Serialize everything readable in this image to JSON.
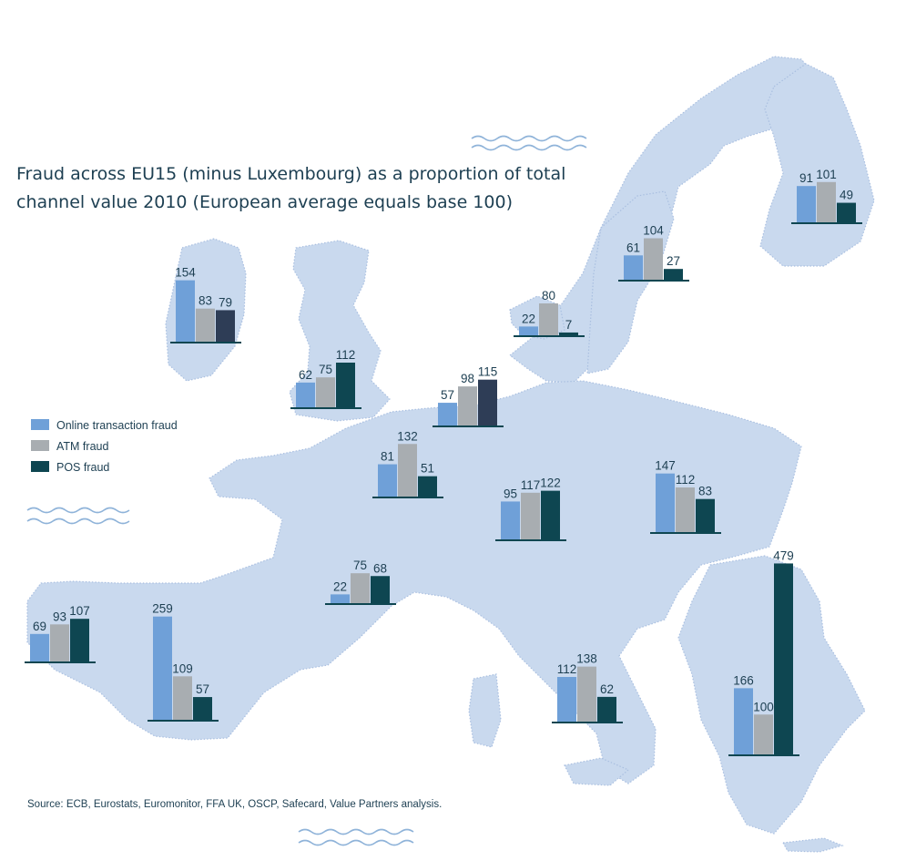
{
  "title": {
    "line1": "Fraud across EU15 (minus Luxembourg) as a proportion of total",
    "line2": "channel value 2010 (European average equals base 100)"
  },
  "legend": [
    {
      "label": "Online transaction fraud",
      "color": "#6fa0d8"
    },
    {
      "label": "ATM fraud",
      "color": "#a8adb1"
    },
    {
      "label": "POS fraud",
      "color": "#0e4651"
    }
  ],
  "source": "Source: ECB, Eurostats, Euromonitor, FFA UK, OSCP, Safecard, Value Partners analysis.",
  "chart_data": {
    "type": "bar",
    "title": "Fraud across EU15 (minus Luxembourg) as a proportion of total channel value 2010 (European average equals base 100)",
    "series_names": [
      "Online transaction fraud",
      "ATM fraud",
      "POS fraud"
    ],
    "groups": [
      {
        "id": "ireland",
        "values": [
          154,
          83,
          79
        ],
        "labels": [
          "154",
          "83",
          "79"
        ],
        "pos_color": "#2e3d56"
      },
      {
        "id": "uk",
        "values": [
          62,
          75,
          112
        ],
        "labels": [
          "62",
          "75",
          "112"
        ],
        "pos_color": "#0e4651"
      },
      {
        "id": "netherlands",
        "values": [
          57,
          98,
          115
        ],
        "labels": [
          "57",
          "98",
          "115"
        ],
        "pos_color": "#2e3d56"
      },
      {
        "id": "belgium",
        "values": [
          81,
          132,
          51
        ],
        "labels": [
          "81",
          "132",
          "51"
        ],
        "pos_color": "#0e4651"
      },
      {
        "id": "denmark",
        "values": [
          22,
          80,
          7
        ],
        "labels": [
          "22",
          "80",
          "7"
        ],
        "pos_color": "#0e4651"
      },
      {
        "id": "sweden",
        "values": [
          61,
          104,
          27
        ],
        "labels": [
          "61",
          "104",
          "27"
        ],
        "pos_color": "#0e4651"
      },
      {
        "id": "finland",
        "values": [
          91,
          101,
          49
        ],
        "labels": [
          "91",
          "101",
          "49"
        ],
        "pos_color": "#0e4651"
      },
      {
        "id": "germany",
        "values": [
          95,
          117,
          122
        ],
        "labels": [
          "95",
          "117",
          "122"
        ],
        "pos_color": "#0e4651"
      },
      {
        "id": "austria",
        "values": [
          147,
          112,
          83
        ],
        "labels": [
          "147",
          "112",
          "83"
        ],
        "pos_color": "#0e4651"
      },
      {
        "id": "france",
        "values": [
          22,
          75,
          68
        ],
        "labels": [
          "22",
          "75",
          "68"
        ],
        "pos_color": "#0e4651"
      },
      {
        "id": "portugal",
        "values": [
          69,
          93,
          107
        ],
        "labels": [
          "69",
          "93",
          "107"
        ],
        "pos_color": "#0e4651"
      },
      {
        "id": "spain",
        "values": [
          259,
          109,
          57
        ],
        "labels": [
          "259",
          "109",
          "57"
        ],
        "pos_color": "#0e4651"
      },
      {
        "id": "italy",
        "values": [
          112,
          138,
          62
        ],
        "labels": [
          "112",
          "138",
          "62"
        ],
        "pos_color": "#0e4651"
      },
      {
        "id": "greece",
        "values": [
          166,
          100,
          479
        ],
        "labels": [
          "166",
          "100",
          "479"
        ],
        "pos_color": "#0e4651"
      }
    ]
  }
}
